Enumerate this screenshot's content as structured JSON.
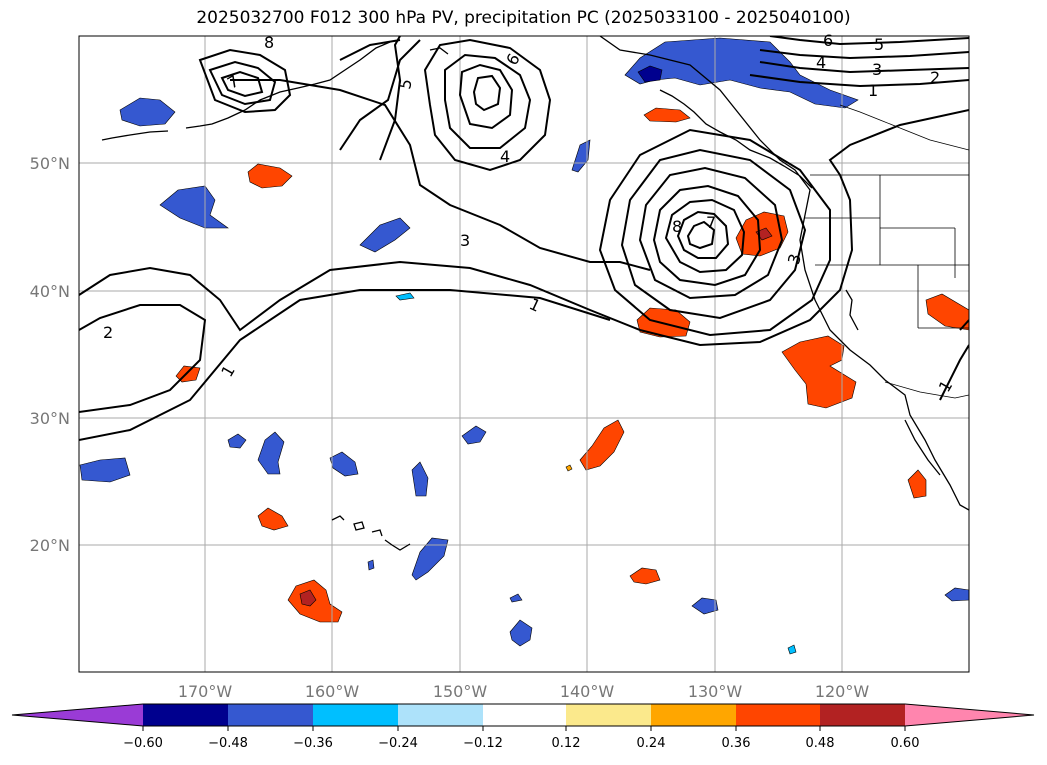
{
  "title": "2025032700 F012 300 hPa PV, precipitation PC (2025033100 - 2025040100)",
  "lat_labels": [
    "50°N",
    "40°N",
    "30°N",
    "20°N"
  ],
  "lon_labels": [
    "170°W",
    "160°W",
    "150°W",
    "140°W",
    "130°W",
    "120°W"
  ],
  "colorbar": {
    "ticks": [
      "−0.60",
      "−0.48",
      "−0.36",
      "−0.24",
      "−0.12",
      "0.12",
      "0.24",
      "0.36",
      "0.48",
      "0.60"
    ],
    "colors": [
      "#9a3bd6",
      "#00008e",
      "#3558d0",
      "#00bfff",
      "#ade2fa",
      "#ffffff",
      "#fbe98c",
      "#ffa600",
      "#ff4500",
      "#b22222",
      "#ff85ae"
    ]
  },
  "pv_contour_labels": [
    "1",
    "2",
    "3",
    "4",
    "5",
    "6",
    "7",
    "8"
  ],
  "colors": {
    "neg_dark": "#00008e",
    "neg_mid": "#3558d0",
    "neg_light": "#00bfff",
    "pos_light": "#fbe98c",
    "pos_mid": "#ff4500",
    "pos_dark": "#b22222"
  }
}
